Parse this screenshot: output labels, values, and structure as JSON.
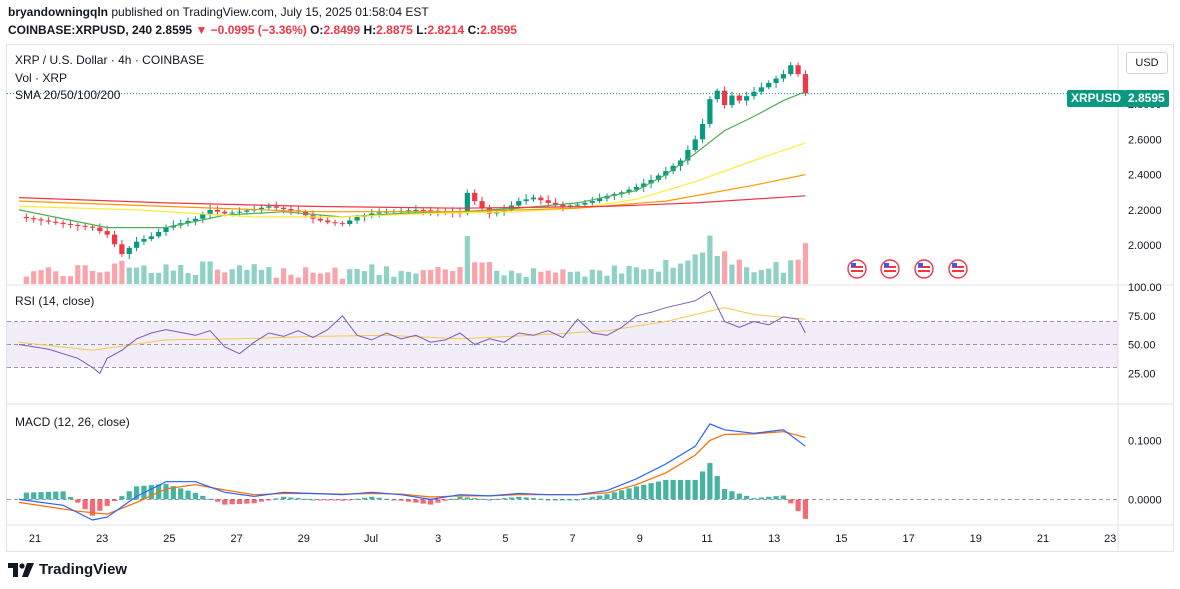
{
  "header": {
    "author": "bryandowningqln",
    "published_text": "published on TradingView.com, July 15, 2025 01:58:04 EST",
    "symbol": "COINBASE:XRPUSD, 240",
    "last": "2.8595",
    "change": "−0.0995 (−3.36%)",
    "open_label": "O:",
    "open": "2.8499",
    "high_label": "H:",
    "high": "2.8875",
    "low_label": "L:",
    "low": "2.8214",
    "close_label": "C:",
    "close": "2.8595"
  },
  "legend": {
    "title": "XRP / U.S. Dollar · 4h · COINBASE",
    "volume": "Vol · XRP",
    "sma": "SMA 20/50/100/200",
    "rsi": "RSI (14, close)",
    "macd": "MACD (12, 26, close)"
  },
  "currency_button": "USD",
  "price_tag": {
    "symbol": "XRPUSD",
    "value": "2.8595"
  },
  "footer": {
    "brand": "TradingView",
    "logo_icon": "tradingview-logo-icon"
  },
  "colors": {
    "up": "#089981",
    "down": "#f23645",
    "sma20": "#4caf50",
    "sma50": "#ffeb3b",
    "sma100": "#ff9800",
    "sma200": "#f23645",
    "rsi": "#7e57c2",
    "macd": "#2962ff",
    "signal": "#ff6d00"
  },
  "chart_data": [
    {
      "type": "candlestick",
      "x_axis": {
        "tick_labels": [
          "21",
          "23",
          "25",
          "27",
          "29",
          "Jul",
          "3",
          "5",
          "7",
          "9",
          "11",
          "13",
          "15",
          "17",
          "19",
          "21",
          "23"
        ]
      },
      "y_axis": {
        "tick_labels": [
          "2.0000",
          "2.2000",
          "2.4000",
          "2.6000",
          "2.8000"
        ],
        "range": [
          1.78,
          3.05
        ]
      },
      "last_price": 2.8595,
      "close_path": [
        [
          0,
          2.16
        ],
        [
          3,
          2.12
        ],
        [
          5,
          2.1
        ],
        [
          6,
          2.06
        ],
        [
          7,
          1.95
        ],
        [
          8,
          2.02
        ],
        [
          9,
          2.05
        ],
        [
          10,
          2.1
        ],
        [
          12,
          2.15
        ],
        [
          13,
          2.2
        ],
        [
          14,
          2.18
        ],
        [
          15,
          2.19
        ],
        [
          17,
          2.22
        ],
        [
          19,
          2.19
        ],
        [
          20,
          2.15
        ],
        [
          21,
          2.13
        ],
        [
          22,
          2.12
        ],
        [
          23,
          2.16
        ],
        [
          24,
          2.18
        ],
        [
          25,
          2.19
        ],
        [
          27,
          2.2
        ],
        [
          29,
          2.19
        ],
        [
          30,
          2.18
        ],
        [
          30.6,
          2.32
        ],
        [
          31,
          2.25
        ],
        [
          31.5,
          2.21
        ],
        [
          32,
          2.18
        ],
        [
          33,
          2.2
        ],
        [
          34,
          2.25
        ],
        [
          35,
          2.27
        ],
        [
          36,
          2.24
        ],
        [
          37,
          2.22
        ],
        [
          38,
          2.23
        ],
        [
          39,
          2.25
        ],
        [
          40,
          2.28
        ],
        [
          41,
          2.3
        ],
        [
          42,
          2.33
        ],
        [
          43,
          2.37
        ],
        [
          44,
          2.42
        ],
        [
          45,
          2.48
        ],
        [
          46,
          2.6
        ],
        [
          46.8,
          2.74
        ],
        [
          47.3,
          2.96
        ],
        [
          47.8,
          2.75
        ],
        [
          48.3,
          2.86
        ],
        [
          49,
          2.82
        ],
        [
          50,
          2.87
        ],
        [
          51,
          2.92
        ],
        [
          52,
          2.97
        ],
        [
          52.5,
          3.02
        ],
        [
          53,
          2.97
        ],
        [
          53.5,
          2.86
        ]
      ],
      "sma": [
        {
          "name": "SMA 20",
          "path": [
            [
              0,
              2.2
            ],
            [
              6,
              2.1
            ],
            [
              10,
              2.1
            ],
            [
              14,
              2.17
            ],
            [
              18,
              2.19
            ],
            [
              22,
              2.16
            ],
            [
              26,
              2.18
            ],
            [
              30,
              2.19
            ],
            [
              34,
              2.21
            ],
            [
              38,
              2.24
            ],
            [
              42,
              2.31
            ],
            [
              44,
              2.4
            ],
            [
              46,
              2.52
            ],
            [
              48,
              2.65
            ],
            [
              50,
              2.73
            ],
            [
              52,
              2.82
            ],
            [
              53.5,
              2.87
            ]
          ]
        },
        {
          "name": "SMA 50",
          "path": [
            [
              0,
              2.22
            ],
            [
              8,
              2.2
            ],
            [
              16,
              2.16
            ],
            [
              22,
              2.16
            ],
            [
              28,
              2.18
            ],
            [
              34,
              2.19
            ],
            [
              38,
              2.21
            ],
            [
              42,
              2.26
            ],
            [
              46,
              2.36
            ],
            [
              50,
              2.48
            ],
            [
              53.5,
              2.58
            ]
          ]
        },
        {
          "name": "SMA 100",
          "path": [
            [
              0,
              2.25
            ],
            [
              10,
              2.22
            ],
            [
              20,
              2.19
            ],
            [
              30,
              2.19
            ],
            [
              38,
              2.21
            ],
            [
              44,
              2.25
            ],
            [
              50,
              2.34
            ],
            [
              53.5,
              2.4
            ]
          ]
        },
        {
          "name": "SMA 200",
          "path": [
            [
              0,
              2.27
            ],
            [
              10,
              2.24
            ],
            [
              20,
              2.22
            ],
            [
              30,
              2.21
            ],
            [
              40,
              2.22
            ],
            [
              46,
              2.24
            ],
            [
              53.5,
              2.28
            ]
          ]
        }
      ]
    },
    {
      "type": "line",
      "name": "RSI (14, close)",
      "y_axis": {
        "tick_labels": [
          "25.00",
          "50.00",
          "75.00",
          "100.00"
        ],
        "range": [
          0,
          100
        ]
      },
      "levels": [
        30,
        50,
        70
      ],
      "rsi": [
        [
          0,
          50
        ],
        [
          2,
          46
        ],
        [
          4,
          38
        ],
        [
          5,
          30
        ],
        [
          5.5,
          25
        ],
        [
          6,
          38
        ],
        [
          7,
          45
        ],
        [
          8,
          55
        ],
        [
          9,
          60
        ],
        [
          10,
          63
        ],
        [
          12,
          58
        ],
        [
          13,
          62
        ],
        [
          14,
          48
        ],
        [
          15,
          42
        ],
        [
          16,
          52
        ],
        [
          17,
          60
        ],
        [
          18,
          57
        ],
        [
          19,
          62
        ],
        [
          20,
          56
        ],
        [
          21,
          63
        ],
        [
          22,
          75
        ],
        [
          23,
          58
        ],
        [
          24,
          54
        ],
        [
          25,
          60
        ],
        [
          26,
          55
        ],
        [
          27,
          58
        ],
        [
          28,
          52
        ],
        [
          29,
          54
        ],
        [
          30,
          60
        ],
        [
          31,
          50
        ],
        [
          32,
          55
        ],
        [
          33,
          52
        ],
        [
          34,
          60
        ],
        [
          35,
          58
        ],
        [
          36,
          62
        ],
        [
          37,
          56
        ],
        [
          38,
          72
        ],
        [
          39,
          60
        ],
        [
          40,
          58
        ],
        [
          41,
          65
        ],
        [
          42,
          75
        ],
        [
          43,
          78
        ],
        [
          44,
          82
        ],
        [
          45,
          85
        ],
        [
          46,
          88
        ],
        [
          47,
          96
        ],
        [
          48,
          70
        ],
        [
          49,
          65
        ],
        [
          50,
          70
        ],
        [
          51,
          67
        ],
        [
          52,
          74
        ],
        [
          53,
          72
        ],
        [
          53.5,
          60
        ]
      ],
      "rsi_ma": [
        [
          0,
          52
        ],
        [
          5,
          45
        ],
        [
          10,
          54
        ],
        [
          15,
          55
        ],
        [
          20,
          57
        ],
        [
          25,
          58
        ],
        [
          30,
          55
        ],
        [
          35,
          58
        ],
        [
          40,
          62
        ],
        [
          44,
          70
        ],
        [
          48,
          82
        ],
        [
          50,
          76
        ],
        [
          53.5,
          72
        ]
      ]
    },
    {
      "type": "line",
      "name": "MACD (12, 26, close)",
      "y_axis": {
        "tick_labels": [
          "0.0000",
          "0.1000"
        ],
        "range": [
          -0.04,
          0.16
        ]
      },
      "macd": [
        [
          0,
          0.0
        ],
        [
          3,
          -0.01
        ],
        [
          5,
          -0.035
        ],
        [
          6,
          -0.03
        ],
        [
          8,
          0.005
        ],
        [
          10,
          0.03
        ],
        [
          12,
          0.03
        ],
        [
          14,
          0.012
        ],
        [
          16,
          0.005
        ],
        [
          18,
          0.012
        ],
        [
          20,
          0.01
        ],
        [
          22,
          0.008
        ],
        [
          24,
          0.012
        ],
        [
          26,
          0.008
        ],
        [
          28,
          0.0
        ],
        [
          30,
          0.008
        ],
        [
          32,
          0.006
        ],
        [
          34,
          0.01
        ],
        [
          36,
          0.008
        ],
        [
          38,
          0.008
        ],
        [
          40,
          0.015
        ],
        [
          42,
          0.035
        ],
        [
          44,
          0.06
        ],
        [
          46,
          0.09
        ],
        [
          47,
          0.128
        ],
        [
          48,
          0.118
        ],
        [
          50,
          0.112
        ],
        [
          52,
          0.118
        ],
        [
          53.5,
          0.09
        ]
      ],
      "signal": [
        [
          0,
          -0.005
        ],
        [
          4,
          -0.02
        ],
        [
          6,
          -0.025
        ],
        [
          8,
          -0.005
        ],
        [
          10,
          0.018
        ],
        [
          12,
          0.025
        ],
        [
          14,
          0.016
        ],
        [
          16,
          0.008
        ],
        [
          18,
          0.01
        ],
        [
          20,
          0.01
        ],
        [
          22,
          0.009
        ],
        [
          24,
          0.01
        ],
        [
          26,
          0.009
        ],
        [
          28,
          0.004
        ],
        [
          30,
          0.006
        ],
        [
          32,
          0.006
        ],
        [
          34,
          0.008
        ],
        [
          36,
          0.008
        ],
        [
          38,
          0.008
        ],
        [
          40,
          0.011
        ],
        [
          42,
          0.025
        ],
        [
          44,
          0.045
        ],
        [
          46,
          0.075
        ],
        [
          47,
          0.1
        ],
        [
          48,
          0.11
        ],
        [
          50,
          0.111
        ],
        [
          52,
          0.115
        ],
        [
          53.5,
          0.105
        ]
      ]
    }
  ]
}
